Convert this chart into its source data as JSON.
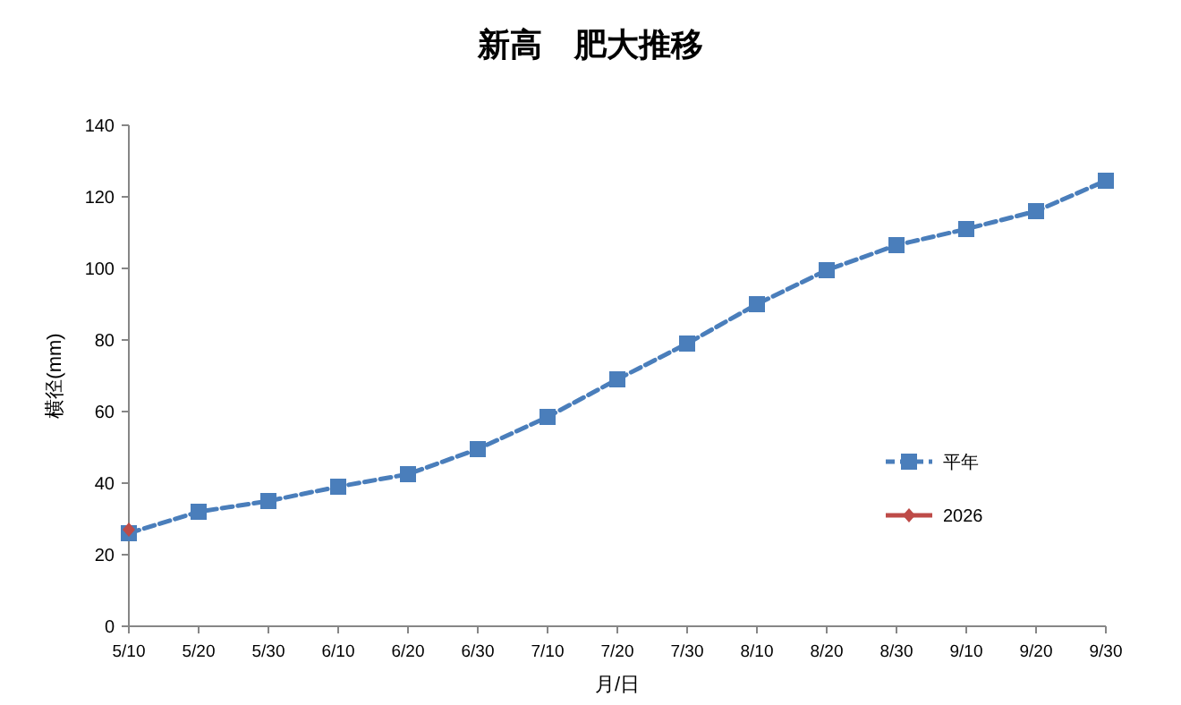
{
  "chart_data": {
    "type": "line",
    "title": "新高　肥大推移",
    "xlabel": "月/日",
    "ylabel": "横径(mm)",
    "categories": [
      "5/10",
      "5/20",
      "5/30",
      "6/10",
      "6/20",
      "6/30",
      "7/10",
      "7/20",
      "7/30",
      "8/10",
      "8/20",
      "8/30",
      "9/10",
      "9/20",
      "9/30"
    ],
    "ylim": [
      0,
      140
    ],
    "yticks": [
      0,
      20,
      40,
      60,
      80,
      100,
      120,
      140
    ],
    "grid": false,
    "legend": "right",
    "series": [
      {
        "name": "平年",
        "color": "#4a7ebb",
        "marker": "square",
        "line_style": "dashed",
        "values": [
          26,
          32,
          35,
          39,
          42.5,
          49.5,
          58.5,
          69,
          79,
          90,
          99.5,
          106.5,
          111,
          116,
          124.5
        ]
      },
      {
        "name": "2026",
        "color": "#be4b48",
        "marker": "diamond",
        "line_style": "solid",
        "values": [
          27,
          null,
          null,
          null,
          null,
          null,
          null,
          null,
          null,
          null,
          null,
          null,
          null,
          null,
          null
        ]
      }
    ]
  }
}
